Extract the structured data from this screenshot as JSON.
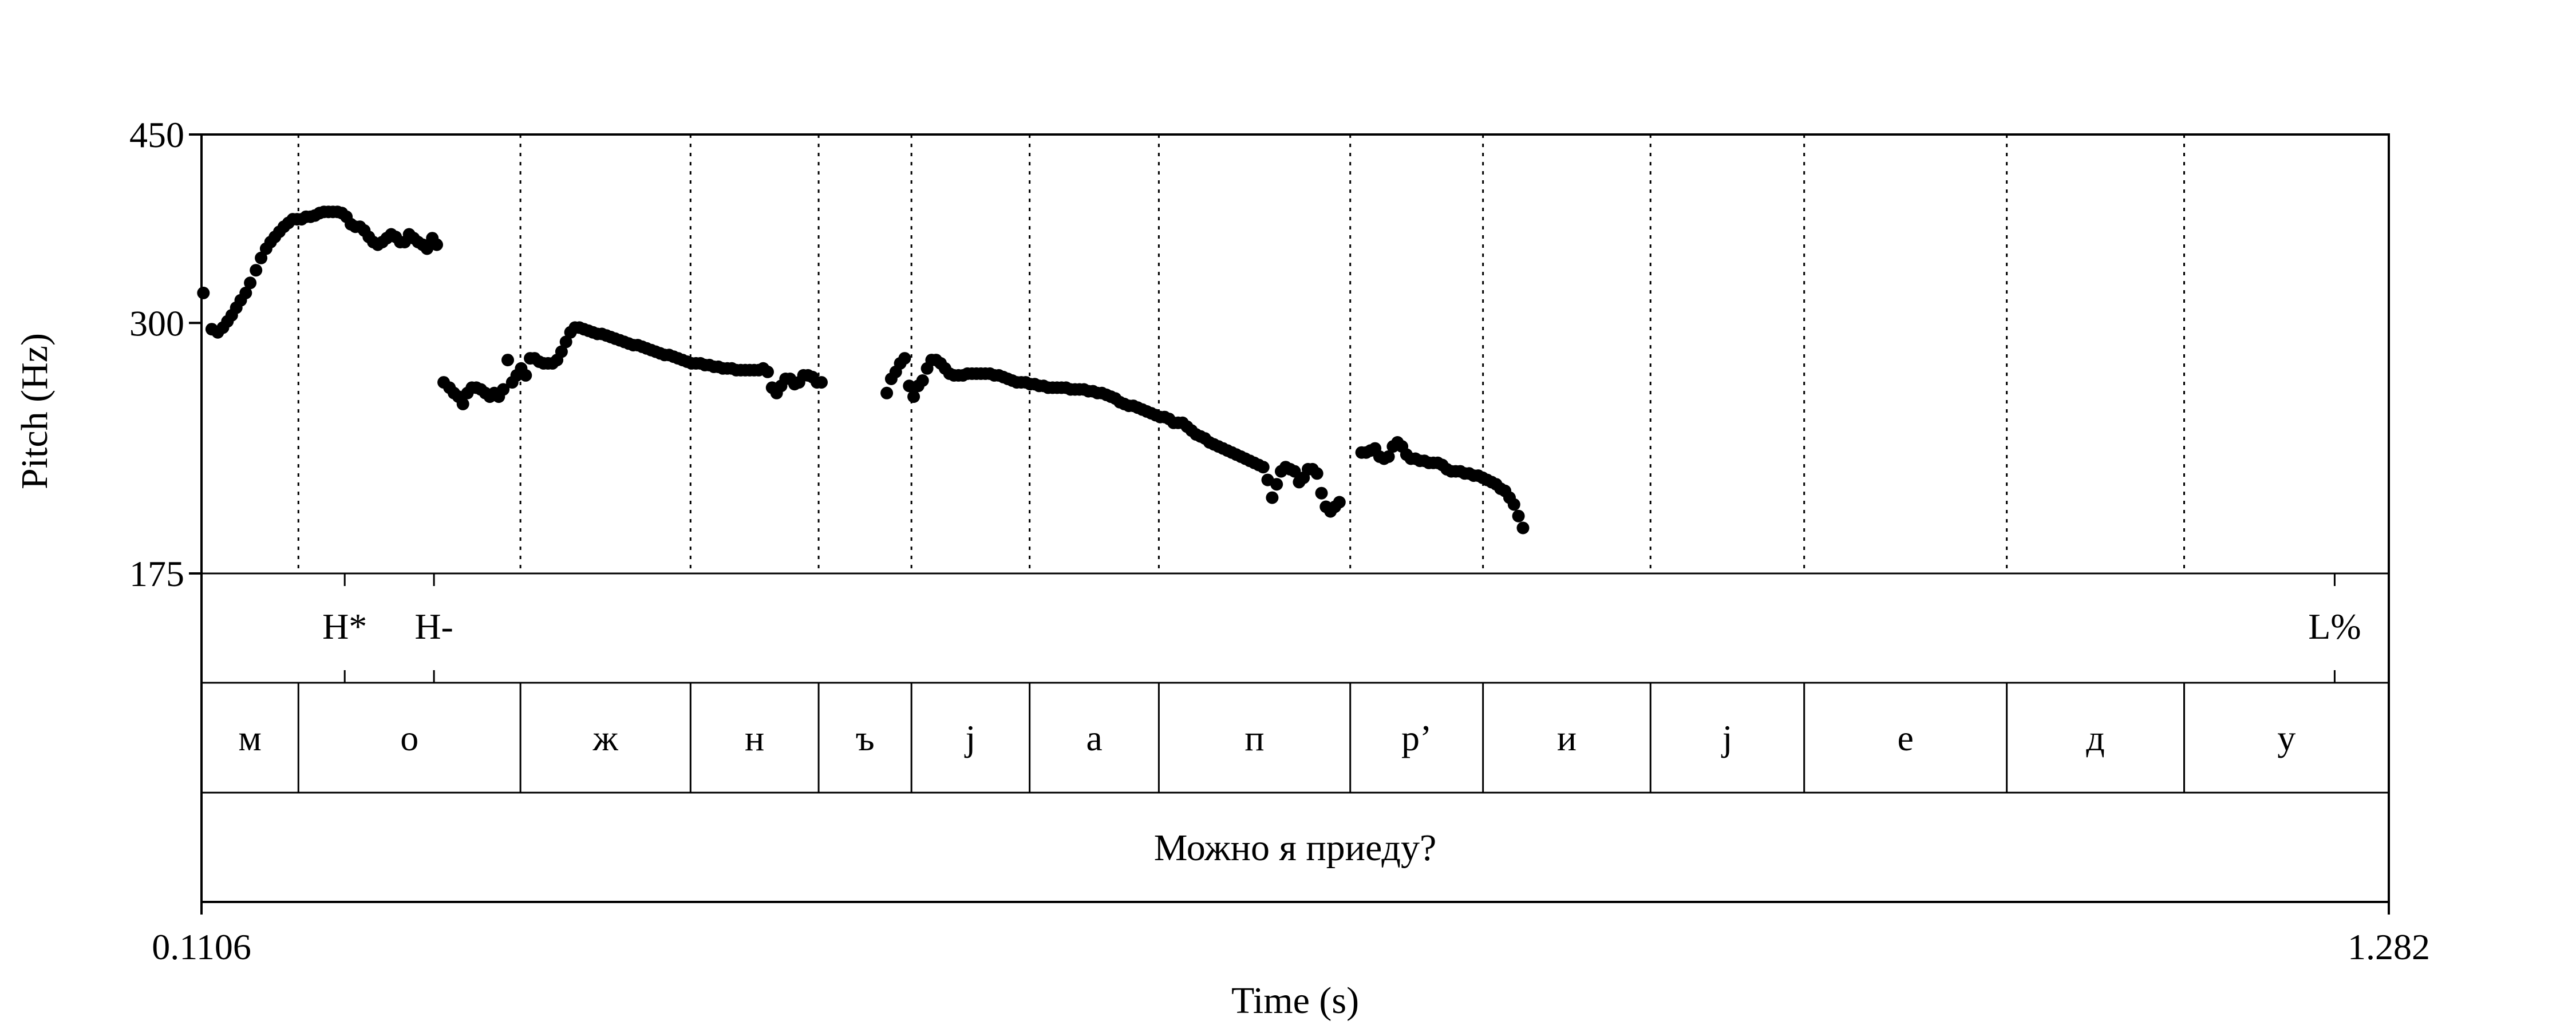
{
  "chart_data": {
    "type": "scatter",
    "xlabel": "Time (s)",
    "ylabel": "Pitch (Hz)",
    "xlim": [
      0.1106,
      1.282
    ],
    "ylim": [
      175,
      450
    ],
    "x_tick_labels": [
      "0.1106",
      "1.282"
    ],
    "y_ticks": [
      175,
      300,
      450
    ],
    "y_tick_labels": [
      "175",
      "300",
      "450"
    ],
    "y_scale": "log",
    "boundaries": [
      0.1625,
      0.2814,
      0.3725,
      0.4411,
      0.4908,
      0.5541,
      0.6233,
      0.7258,
      0.7969,
      0.8866,
      0.9689,
      1.0774,
      1.1724
    ],
    "tone_tier": [
      {
        "label": "H*",
        "time": 0.1873
      },
      {
        "label": "H-",
        "time": 0.2351
      },
      {
        "label": "L%",
        "time": 1.253
      }
    ],
    "segments": [
      {
        "label": "м",
        "start": 0.1106,
        "end": 0.1625
      },
      {
        "label": "о",
        "start": 0.1625,
        "end": 0.2814
      },
      {
        "label": "ж",
        "start": 0.2814,
        "end": 0.3725
      },
      {
        "label": "н",
        "start": 0.3725,
        "end": 0.4411
      },
      {
        "label": "ъ",
        "start": 0.4411,
        "end": 0.4908
      },
      {
        "label": "j",
        "start": 0.4908,
        "end": 0.5541
      },
      {
        "label": "а",
        "start": 0.5541,
        "end": 0.6233
      },
      {
        "label": "п",
        "start": 0.6233,
        "end": 0.7258
      },
      {
        "label": "р’",
        "start": 0.7258,
        "end": 0.7969
      },
      {
        "label": "и",
        "start": 0.7969,
        "end": 0.8866
      },
      {
        "label": "j",
        "start": 0.8866,
        "end": 0.9689
      },
      {
        "label": "е",
        "start": 0.9689,
        "end": 1.0774
      },
      {
        "label": "д",
        "start": 1.0774,
        "end": 1.1724
      },
      {
        "label": "у",
        "start": 1.1724,
        "end": 1.282
      }
    ],
    "sentence": "Можно я приеду?",
    "series": [
      {
        "points": [
          [
            0.1116,
            320
          ],
          [
            0.1161,
            296
          ],
          [
            0.1193,
            294
          ],
          [
            0.1221,
            297
          ],
          [
            0.1245,
            301
          ],
          [
            0.1268,
            305
          ],
          [
            0.1292,
            310
          ],
          [
            0.1316,
            315
          ],
          [
            0.1343,
            320
          ],
          [
            0.1367,
            327
          ],
          [
            0.1398,
            336
          ],
          [
            0.1425,
            345
          ],
          [
            0.1452,
            352
          ],
          [
            0.1476,
            357
          ],
          [
            0.1499,
            361
          ],
          [
            0.1523,
            365
          ],
          [
            0.1547,
            369
          ],
          [
            0.1571,
            372
          ],
          [
            0.1595,
            375
          ],
          [
            0.1618,
            375
          ],
          [
            0.1642,
            375
          ],
          [
            0.1666,
            377
          ],
          [
            0.169,
            377
          ],
          [
            0.1714,
            378
          ],
          [
            0.1738,
            380
          ],
          [
            0.1762,
            381
          ],
          [
            0.1786,
            381
          ],
          [
            0.181,
            381
          ],
          [
            0.1834,
            381
          ],
          [
            0.1858,
            380
          ],
          [
            0.1882,
            377
          ],
          [
            0.1906,
            371
          ],
          [
            0.193,
            369
          ],
          [
            0.1954,
            369
          ],
          [
            0.1978,
            366
          ],
          [
            0.2002,
            361
          ],
          [
            0.2026,
            357
          ],
          [
            0.205,
            355
          ],
          [
            0.2074,
            357
          ],
          [
            0.2098,
            360
          ],
          [
            0.2122,
            363
          ],
          [
            0.2146,
            361
          ],
          [
            0.217,
            357
          ],
          [
            0.2194,
            357
          ],
          [
            0.2218,
            363
          ],
          [
            0.2242,
            360
          ],
          [
            0.2266,
            357
          ],
          [
            0.229,
            355
          ],
          [
            0.2314,
            352
          ],
          [
            0.2342,
            360
          ],
          [
            0.2366,
            355
          ]
        ]
      },
      {
        "points": [
          [
            0.2403,
            264
          ],
          [
            0.2434,
            261
          ],
          [
            0.2458,
            258
          ],
          [
            0.2482,
            256
          ],
          [
            0.2506,
            252
          ],
          [
            0.253,
            258
          ],
          [
            0.2554,
            261
          ],
          [
            0.2578,
            261
          ],
          [
            0.2602,
            260
          ],
          [
            0.2626,
            258
          ],
          [
            0.265,
            256
          ],
          [
            0.2674,
            258
          ],
          [
            0.2698,
            256
          ],
          [
            0.2722,
            260
          ],
          [
            0.2746,
            277
          ],
          [
            0.277,
            264
          ],
          [
            0.2794,
            268
          ],
          [
            0.2818,
            272
          ],
          [
            0.2842,
            268
          ],
          [
            0.2866,
            278
          ],
          [
            0.289,
            278
          ],
          [
            0.2914,
            276
          ],
          [
            0.2938,
            275
          ],
          [
            0.2962,
            275
          ],
          [
            0.2986,
            275
          ],
          [
            0.301,
            277
          ],
          [
            0.3034,
            282
          ],
          [
            0.3058,
            288
          ],
          [
            0.3082,
            294
          ],
          [
            0.3106,
            297
          ],
          [
            0.313,
            297
          ],
          [
            0.3154,
            296
          ],
          [
            0.3178,
            295
          ],
          [
            0.3202,
            294
          ],
          [
            0.3226,
            293
          ],
          [
            0.325,
            293
          ],
          [
            0.3274,
            292
          ],
          [
            0.3298,
            291
          ],
          [
            0.3322,
            290
          ],
          [
            0.3346,
            289
          ],
          [
            0.337,
            288
          ],
          [
            0.3394,
            287
          ],
          [
            0.3418,
            286
          ],
          [
            0.3442,
            286
          ],
          [
            0.3466,
            285
          ],
          [
            0.349,
            284
          ],
          [
            0.3514,
            283
          ],
          [
            0.3538,
            282
          ],
          [
            0.3562,
            281
          ],
          [
            0.3586,
            280
          ],
          [
            0.361,
            280
          ],
          [
            0.3634,
            279
          ],
          [
            0.3658,
            278
          ],
          [
            0.3682,
            277
          ],
          [
            0.3706,
            276
          ],
          [
            0.373,
            275
          ],
          [
            0.3754,
            275
          ],
          [
            0.3778,
            275
          ],
          [
            0.3802,
            274
          ],
          [
            0.3826,
            274
          ],
          [
            0.385,
            273
          ],
          [
            0.3874,
            273
          ],
          [
            0.3898,
            272
          ],
          [
            0.3922,
            272
          ],
          [
            0.3946,
            272
          ],
          [
            0.397,
            271
          ],
          [
            0.3994,
            271
          ],
          [
            0.4018,
            271
          ],
          [
            0.4042,
            271
          ],
          [
            0.4066,
            271
          ],
          [
            0.409,
            271
          ],
          [
            0.4114,
            272
          ],
          [
            0.4138,
            270
          ],
          [
            0.4162,
            261
          ],
          [
            0.4186,
            258
          ],
          [
            0.421,
            262
          ],
          [
            0.4234,
            266
          ],
          [
            0.4258,
            266
          ],
          [
            0.4282,
            263
          ],
          [
            0.4306,
            264
          ],
          [
            0.433,
            268
          ],
          [
            0.4354,
            268
          ],
          [
            0.4378,
            267
          ],
          [
            0.4402,
            264
          ],
          [
            0.4426,
            264
          ]
        ]
      },
      {
        "points": [
          [
            0.4776,
            258
          ],
          [
            0.48,
            266
          ],
          [
            0.4824,
            270
          ],
          [
            0.4848,
            275
          ],
          [
            0.4872,
            278
          ],
          [
            0.4896,
            262
          ],
          [
            0.492,
            256
          ],
          [
            0.4944,
            262
          ],
          [
            0.4968,
            265
          ],
          [
            0.4992,
            272
          ],
          [
            0.5016,
            277
          ],
          [
            0.504,
            277
          ],
          [
            0.5064,
            275
          ],
          [
            0.5088,
            272
          ],
          [
            0.5112,
            269
          ],
          [
            0.5136,
            268
          ],
          [
            0.516,
            268
          ],
          [
            0.5184,
            268
          ],
          [
            0.5208,
            269
          ],
          [
            0.5232,
            269
          ],
          [
            0.5256,
            269
          ],
          [
            0.528,
            269
          ],
          [
            0.5304,
            269
          ],
          [
            0.5328,
            269
          ],
          [
            0.5352,
            268
          ],
          [
            0.5376,
            268
          ],
          [
            0.54,
            267
          ],
          [
            0.5424,
            266
          ],
          [
            0.5448,
            265
          ],
          [
            0.5472,
            264
          ],
          [
            0.5496,
            264
          ],
          [
            0.552,
            264
          ],
          [
            0.5544,
            263
          ],
          [
            0.5568,
            263
          ],
          [
            0.5592,
            262
          ],
          [
            0.5616,
            262
          ],
          [
            0.564,
            261
          ],
          [
            0.5664,
            261
          ],
          [
            0.5688,
            261
          ],
          [
            0.5712,
            261
          ],
          [
            0.5736,
            261
          ],
          [
            0.576,
            260
          ],
          [
            0.5784,
            260
          ],
          [
            0.5808,
            260
          ],
          [
            0.5832,
            260
          ],
          [
            0.5856,
            259
          ],
          [
            0.588,
            259
          ],
          [
            0.5904,
            258
          ],
          [
            0.5928,
            258
          ],
          [
            0.5952,
            257
          ],
          [
            0.5976,
            256
          ],
          [
            0.6,
            255
          ],
          [
            0.6024,
            253
          ],
          [
            0.6048,
            252
          ],
          [
            0.6072,
            251
          ],
          [
            0.6096,
            251
          ],
          [
            0.612,
            250
          ],
          [
            0.6144,
            249
          ],
          [
            0.6168,
            248
          ],
          [
            0.6192,
            247
          ],
          [
            0.6216,
            246
          ],
          [
            0.624,
            245
          ],
          [
            0.6264,
            245
          ],
          [
            0.6288,
            244
          ],
          [
            0.6312,
            242
          ],
          [
            0.6336,
            242
          ],
          [
            0.636,
            242
          ],
          [
            0.6384,
            240
          ],
          [
            0.6408,
            238
          ],
          [
            0.6432,
            236
          ],
          [
            0.6456,
            235
          ],
          [
            0.648,
            234
          ],
          [
            0.6504,
            232
          ],
          [
            0.6528,
            231
          ],
          [
            0.6552,
            230
          ],
          [
            0.6576,
            229
          ],
          [
            0.66,
            228
          ],
          [
            0.6624,
            227
          ],
          [
            0.6648,
            226
          ],
          [
            0.6672,
            225
          ],
          [
            0.6696,
            224
          ],
          [
            0.672,
            223
          ],
          [
            0.6744,
            222
          ],
          [
            0.6768,
            221
          ],
          [
            0.6792,
            220
          ],
          [
            0.6816,
            214
          ],
          [
            0.684,
            206
          ],
          [
            0.6864,
            212
          ],
          [
            0.6888,
            218
          ],
          [
            0.6912,
            220
          ],
          [
            0.6936,
            219
          ],
          [
            0.696,
            218
          ],
          [
            0.6984,
            213
          ],
          [
            0.7008,
            215
          ],
          [
            0.7032,
            219
          ],
          [
            0.7056,
            219
          ],
          [
            0.708,
            217
          ],
          [
            0.7104,
            208
          ],
          [
            0.7128,
            202
          ],
          [
            0.7152,
            200
          ],
          [
            0.7176,
            202
          ],
          [
            0.72,
            204
          ]
        ]
      },
      {
        "points": [
          [
            0.7319,
            227
          ],
          [
            0.7343,
            227
          ],
          [
            0.7367,
            228
          ],
          [
            0.7391,
            229
          ],
          [
            0.7415,
            225
          ],
          [
            0.7439,
            224
          ],
          [
            0.7463,
            225
          ],
          [
            0.7487,
            230
          ],
          [
            0.7511,
            232
          ],
          [
            0.7535,
            230
          ],
          [
            0.7559,
            226
          ],
          [
            0.7583,
            224
          ],
          [
            0.7607,
            224
          ],
          [
            0.7631,
            223
          ],
          [
            0.7655,
            223
          ],
          [
            0.7679,
            222
          ],
          [
            0.7703,
            222
          ],
          [
            0.7727,
            222
          ],
          [
            0.7751,
            221
          ],
          [
            0.7775,
            219
          ],
          [
            0.7799,
            218
          ],
          [
            0.7823,
            218
          ],
          [
            0.7847,
            218
          ],
          [
            0.7871,
            217
          ],
          [
            0.7895,
            217
          ],
          [
            0.7919,
            216
          ],
          [
            0.7943,
            216
          ],
          [
            0.7967,
            215
          ],
          [
            0.7991,
            214
          ],
          [
            0.8015,
            213
          ],
          [
            0.8039,
            212
          ],
          [
            0.8063,
            210
          ],
          [
            0.8087,
            209
          ],
          [
            0.8111,
            206
          ],
          [
            0.8135,
            203
          ],
          [
            0.8159,
            198
          ],
          [
            0.8183,
            193
          ]
        ]
      }
    ]
  }
}
